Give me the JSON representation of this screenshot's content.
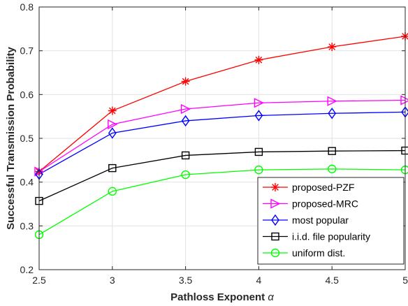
{
  "chart_data": {
    "type": "line",
    "xlabel": "Pathloss Exponent",
    "xlabel_symbol": "α",
    "ylabel": "Successful Transmission Probability",
    "xlim": [
      2.5,
      5
    ],
    "ylim": [
      0.2,
      0.8
    ],
    "x_ticks": [
      "2.5",
      "3",
      "3.5",
      "4",
      "4.5",
      "5"
    ],
    "y_ticks": [
      "0.2",
      "0.3",
      "0.4",
      "0.5",
      "0.6",
      "0.7",
      "0.8"
    ],
    "grid": true,
    "legend_position": "bottom-right",
    "x": [
      2.5,
      3,
      3.5,
      4,
      4.5,
      5
    ],
    "series": [
      {
        "name": "proposed-PZF",
        "color": "#ff0000",
        "marker": "asterisk",
        "values": [
          0.424,
          0.563,
          0.63,
          0.679,
          0.709,
          0.733
        ]
      },
      {
        "name": "proposed-MRC",
        "color": "#ff00ff",
        "marker": "triangle-right",
        "values": [
          0.424,
          0.532,
          0.567,
          0.581,
          0.585,
          0.587
        ]
      },
      {
        "name": "most popular",
        "color": "#0000ff",
        "marker": "diamond",
        "values": [
          0.418,
          0.512,
          0.54,
          0.552,
          0.557,
          0.56
        ]
      },
      {
        "name": "i.i.d. file popularity",
        "color": "#000000",
        "marker": "square",
        "values": [
          0.357,
          0.432,
          0.461,
          0.469,
          0.471,
          0.472
        ]
      },
      {
        "name": "uniform dist.",
        "color": "#00ff00",
        "marker": "circle",
        "values": [
          0.28,
          0.379,
          0.417,
          0.428,
          0.43,
          0.428
        ]
      }
    ]
  }
}
